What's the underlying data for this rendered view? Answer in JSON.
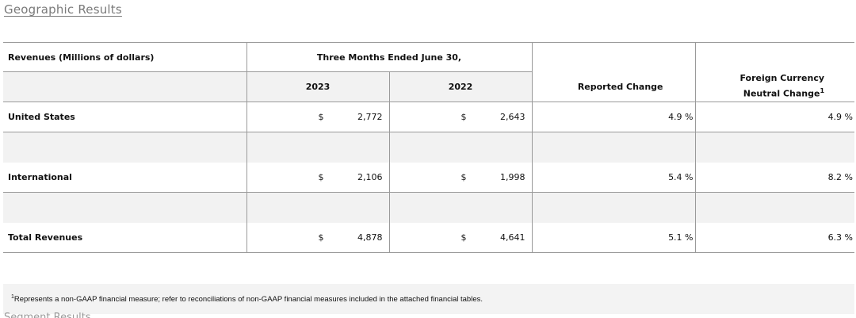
{
  "heading": "Geographic Results",
  "table": {
    "label_header": "Revenues (Millions of dollars)",
    "period_header": "Three Months Ended June 30,",
    "year1": "2023",
    "year2": "2022",
    "reported_change_header": "Reported Change",
    "fc_header_line1": "Foreign Currency",
    "fc_header_line2": "Neutral Change",
    "fc_header_sup": "1",
    "rows": [
      {
        "label": "United States",
        "cur1": "$",
        "v2023": "2,772",
        "cur2": "$",
        "v2022": "2,643",
        "reported": "4.9 %",
        "fc_neutral": "4.9 %"
      },
      {
        "label": "International",
        "cur1": "$",
        "v2023": "2,106",
        "cur2": "$",
        "v2022": "1,998",
        "reported": "5.4 %",
        "fc_neutral": "8.2 %"
      },
      {
        "label": "Total Revenues",
        "cur1": "$",
        "v2023": "4,878",
        "cur2": "$",
        "v2022": "4,641",
        "reported": "5.1 %",
        "fc_neutral": "6.3 %"
      }
    ]
  },
  "footnote": {
    "sup": "1",
    "text": "Represents a non-GAAP financial measure; refer to reconciliations of non-GAAP financial measures included in the attached financial tables."
  },
  "next_heading_partial": "Segment Results"
}
